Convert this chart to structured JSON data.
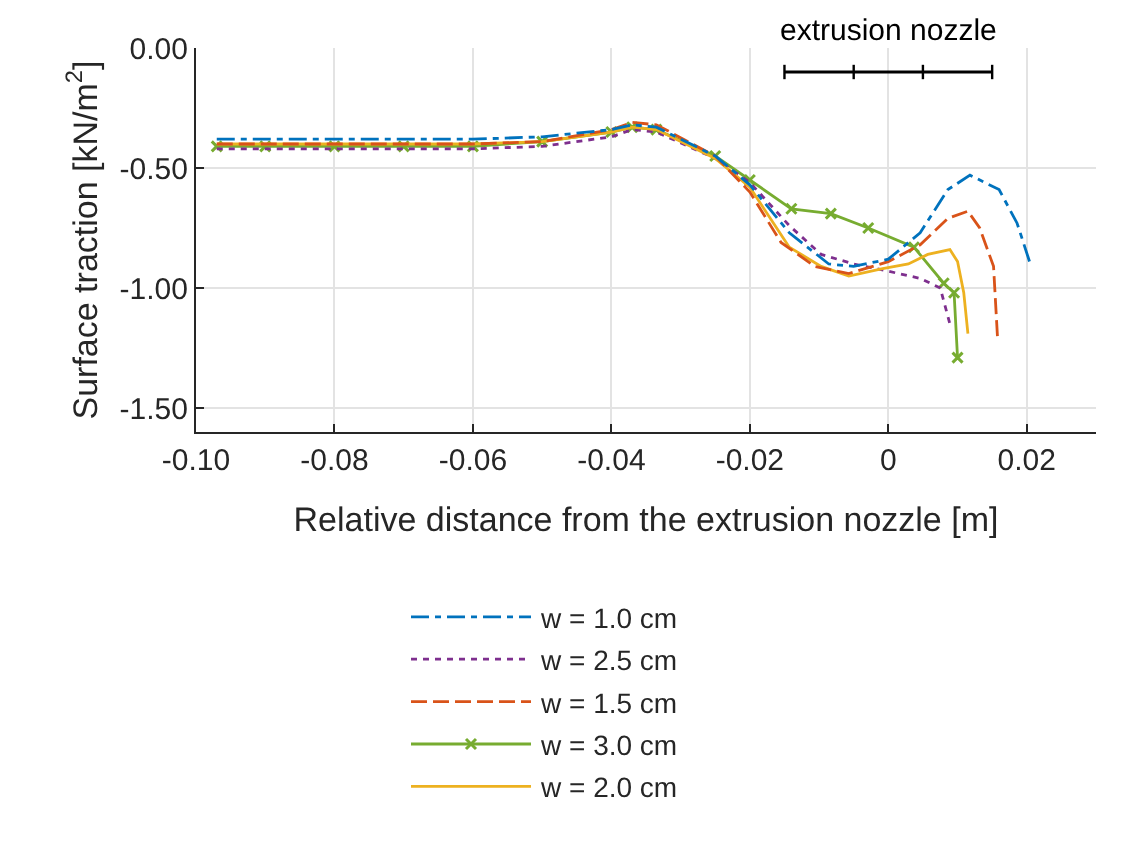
{
  "chart_data": {
    "type": "line",
    "xlabel": "Relative distance from the extrusion nozzle [m]",
    "ylabel": "Surface traction [kN/m$^{2}$]",
    "xlim": [
      -0.1,
      0.03
    ],
    "xticks": [
      {
        "value": -0.1,
        "label": "-0.10"
      },
      {
        "value": -0.08,
        "label": "-0.08"
      },
      {
        "value": -0.06,
        "label": "-0.06"
      },
      {
        "value": -0.04,
        "label": "-0.04"
      },
      {
        "value": -0.02,
        "label": "-0.02"
      },
      0,
      {
        "value": 0.02,
        "label": "0.02"
      }
    ],
    "ylim": [
      -1.6,
      0
    ],
    "yticks": [
      {
        "value": 0,
        "label": "0.00"
      },
      {
        "value": -0.5,
        "label": "-0.50"
      },
      {
        "value": -1.0,
        "label": "-1.00"
      },
      {
        "value": -1.5,
        "label": "-1.50"
      }
    ],
    "grid": true,
    "legend": "bottom",
    "annotations": [
      {
        "text": "extrusion nozzle",
        "x": 0,
        "y": -0.1
      }
    ],
    "series": [
      {
        "name": "w = 1.0 cm",
        "color": "#0072bd",
        "line_style": "dashdot",
        "x": [
          -0.097,
          -0.09,
          -0.08,
          -0.07,
          -0.06,
          -0.05,
          -0.04,
          -0.037,
          -0.0335,
          -0.025,
          -0.02,
          -0.0143,
          -0.0086,
          -0.005,
          0,
          0.0046,
          0.0086,
          0.0118,
          0.016,
          0.0186,
          0.0204
        ],
        "values": [
          -0.38,
          -0.38,
          -0.38,
          -0.38,
          -0.38,
          -0.37,
          -0.34,
          -0.32,
          -0.33,
          -0.45,
          -0.57,
          -0.77,
          -0.9,
          -0.91,
          -0.88,
          -0.77,
          -0.59,
          -0.53,
          -0.59,
          -0.73,
          -0.89
        ]
      },
      {
        "name": "w = 1.5 cm",
        "color": "#d95319",
        "line_style": "dashed",
        "x": [
          -0.097,
          -0.09,
          -0.08,
          -0.07,
          -0.06,
          -0.05,
          -0.04,
          -0.037,
          -0.0335,
          -0.025,
          -0.02,
          -0.0155,
          -0.0106,
          -0.0057,
          0,
          0.0046,
          0.0086,
          0.0115,
          0.0132,
          0.0152,
          0.0158
        ],
        "values": [
          -0.4,
          -0.4,
          -0.4,
          -0.4,
          -0.4,
          -0.39,
          -0.34,
          -0.31,
          -0.32,
          -0.45,
          -0.6,
          -0.81,
          -0.91,
          -0.94,
          -0.89,
          -0.82,
          -0.71,
          -0.68,
          -0.75,
          -0.91,
          -1.22
        ]
      },
      {
        "name": "w = 2.0 cm",
        "color": "#edb120",
        "line_style": "solid",
        "x": [
          -0.097,
          -0.09,
          -0.08,
          -0.07,
          -0.06,
          -0.05,
          -0.04,
          -0.037,
          -0.0335,
          -0.025,
          -0.02,
          -0.0143,
          -0.0097,
          -0.0057,
          -0.001,
          0.0029,
          0.0057,
          0.0089,
          0.01,
          0.0109,
          0.0115
        ],
        "values": [
          -0.4,
          -0.4,
          -0.4,
          -0.4,
          -0.4,
          -0.39,
          -0.35,
          -0.33,
          -0.34,
          -0.46,
          -0.58,
          -0.83,
          -0.91,
          -0.95,
          -0.92,
          -0.9,
          -0.86,
          -0.84,
          -0.89,
          -1.02,
          -1.19
        ]
      },
      {
        "name": "w = 2.5 cm",
        "color": "#7e2f8e",
        "line_style": "dotted",
        "x": [
          -0.097,
          -0.09,
          -0.08,
          -0.07,
          -0.06,
          -0.05,
          -0.04,
          -0.037,
          -0.0335,
          -0.025,
          -0.02,
          -0.0143,
          -0.0097,
          -0.005,
          0,
          0.0046,
          0.0075,
          0.0089
        ],
        "values": [
          -0.42,
          -0.42,
          -0.42,
          -0.42,
          -0.42,
          -0.41,
          -0.37,
          -0.34,
          -0.35,
          -0.46,
          -0.56,
          -0.74,
          -0.86,
          -0.9,
          -0.93,
          -0.96,
          -1.0,
          -1.15
        ]
      },
      {
        "name": "w = 3.0 cm",
        "color": "#77ac30",
        "line_style": "solid",
        "marker": "cross",
        "x": [
          -0.097,
          -0.09,
          -0.08,
          -0.07,
          -0.06,
          -0.05,
          -0.04,
          -0.037,
          -0.0335,
          -0.025,
          -0.02,
          -0.014,
          -0.0083,
          -0.0029,
          0.0037,
          0.008,
          0.0095,
          0.01
        ],
        "values": [
          -0.41,
          -0.41,
          -0.41,
          -0.41,
          -0.41,
          -0.39,
          -0.35,
          -0.33,
          -0.34,
          -0.45,
          -0.55,
          -0.67,
          -0.69,
          -0.75,
          -0.83,
          -0.98,
          -1.02,
          -1.29
        ]
      },
      {
        "color": "#000000",
        "line_style": "solid",
        "x": [
          -0.015,
          -0.005,
          0.005,
          0.015
        ],
        "values": [
          -0.1,
          -0.1,
          -0.1,
          -0.1
        ],
        "errors": [
          0.03,
          0.03,
          0.03,
          0.03
        ]
      }
    ]
  }
}
